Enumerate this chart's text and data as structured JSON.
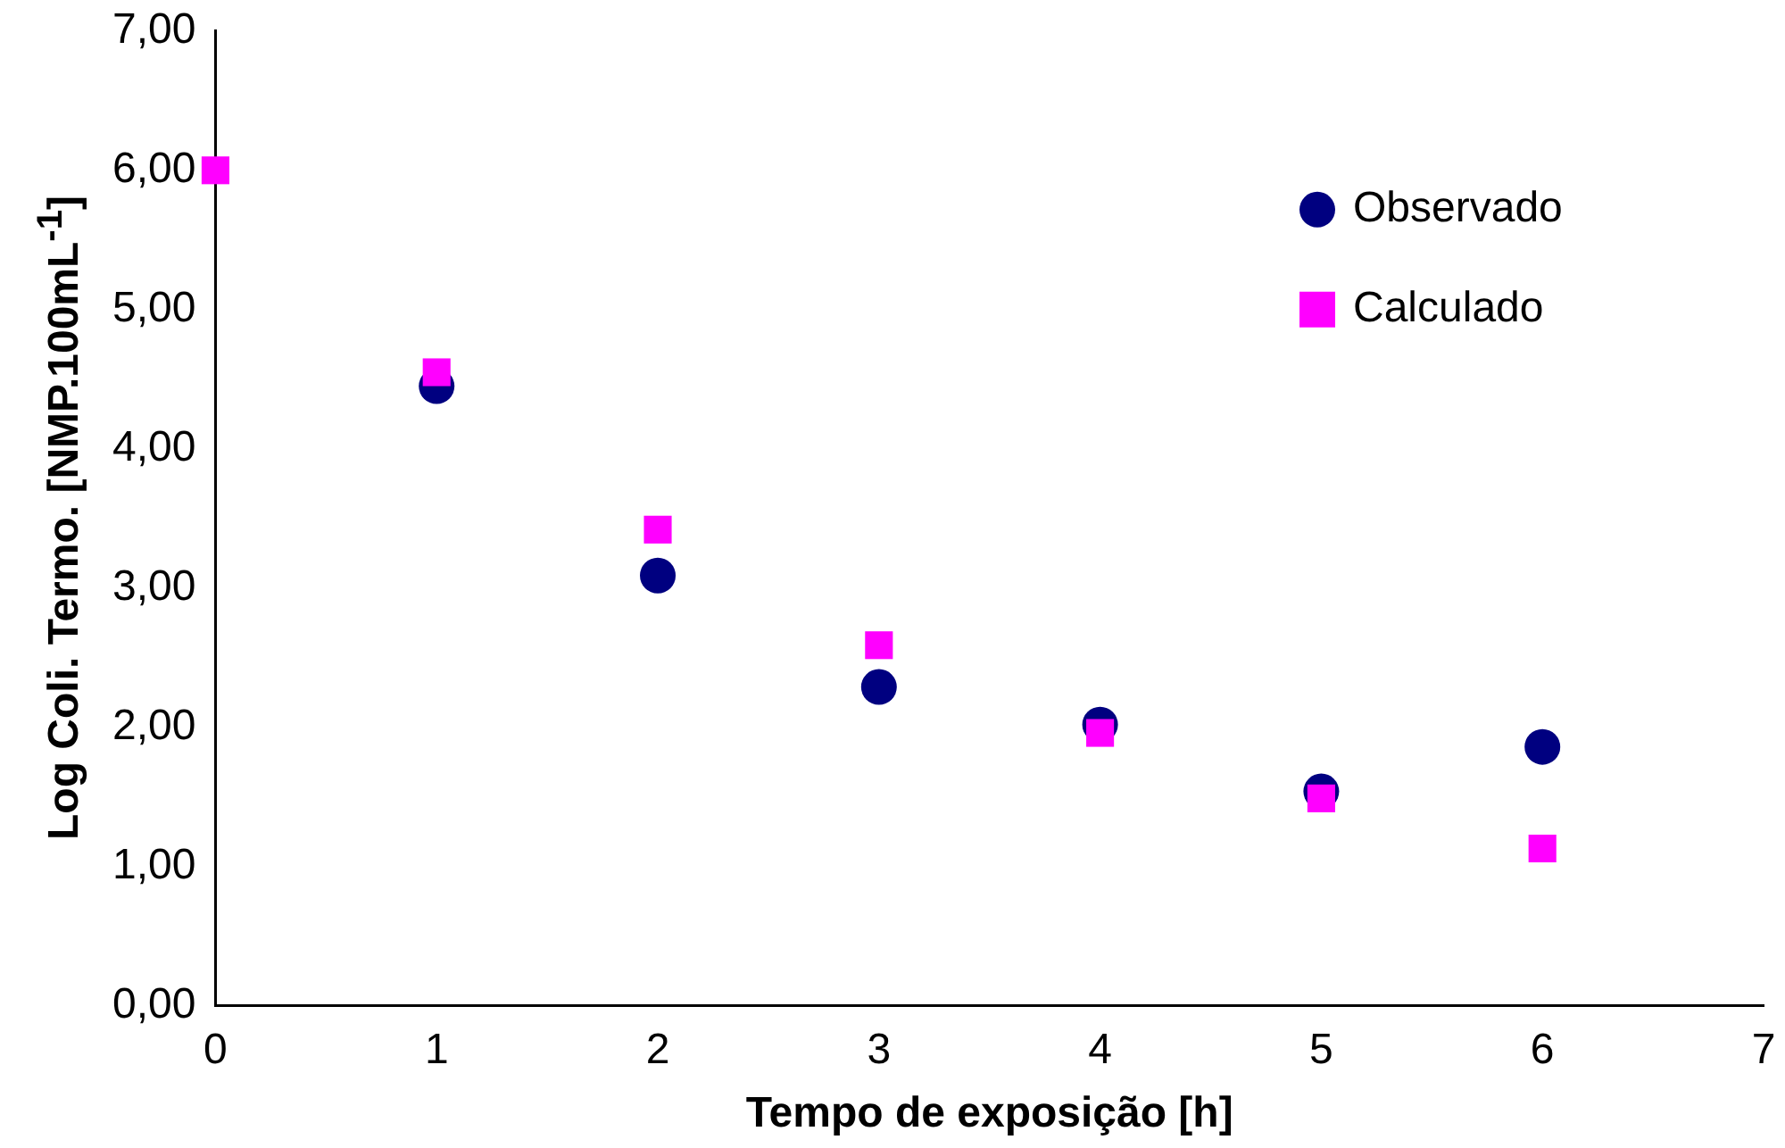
{
  "chart_data": {
    "type": "scatter",
    "xlabel": "Tempo de exposição [h]",
    "ylabel": "Log Coli. Termo. [NMP.100mL$^{-1}$]",
    "x": [
      0,
      1,
      2,
      3,
      4,
      5,
      6
    ],
    "series": [
      {
        "name": "Observado",
        "color": "#000080",
        "marker": "circle",
        "values": [
          null,
          4.45,
          3.09,
          2.29,
          2.02,
          1.54,
          1.86
        ]
      },
      {
        "name": "Calculado",
        "color": "#ff00ff",
        "marker": "square",
        "values": [
          6.0,
          4.55,
          3.42,
          2.59,
          1.96,
          1.49,
          1.13
        ]
      }
    ],
    "xlim": [
      0,
      7
    ],
    "xticks": [
      0,
      1,
      2,
      3,
      4,
      5,
      6,
      7
    ],
    "ylim": [
      0,
      7
    ],
    "yticks": [
      {
        "value": 0,
        "label": "0,00"
      },
      {
        "value": 1,
        "label": "1,00"
      },
      {
        "value": 2,
        "label": "2,00"
      },
      {
        "value": 3,
        "label": "3,00"
      },
      {
        "value": 4,
        "label": "4,00"
      },
      {
        "value": 5,
        "label": "5,00"
      },
      {
        "value": 6,
        "label": "6,00"
      },
      {
        "value": 7,
        "label": "7,00"
      }
    ],
    "grid": false,
    "legend": "top right"
  }
}
